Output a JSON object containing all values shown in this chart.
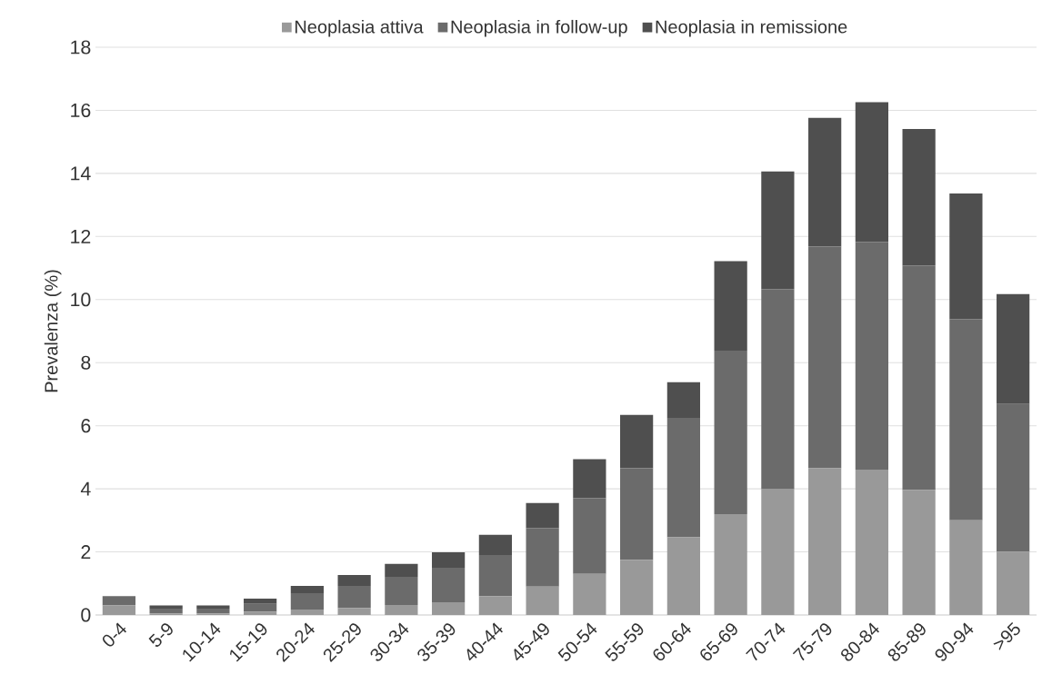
{
  "chart_data": {
    "type": "bar",
    "stacked": true,
    "ylabel": "Prevalenza (%)",
    "categories": [
      "0-4",
      "5-9",
      "10-14",
      "15-19",
      "20-24",
      "25-29",
      "30-34",
      "35-39",
      "40-44",
      "45-49",
      "50-54",
      "55-59",
      "60-64",
      "65-69",
      "70-74",
      "75-79",
      "80-84",
      "85-89",
      "90-94",
      ">95"
    ],
    "series": [
      {
        "name": "Neoplasia attiva",
        "color": "#999999",
        "values": [
          0.3,
          0.05,
          0.05,
          0.1,
          0.17,
          0.22,
          0.32,
          0.4,
          0.6,
          0.9,
          1.3,
          1.75,
          2.46,
          3.2,
          4.0,
          4.65,
          4.61,
          3.96,
          3.0,
          2.01
        ]
      },
      {
        "name": "Neoplasia in follow-up",
        "color": "#6b6b6b",
        "values": [
          0.3,
          0.15,
          0.15,
          0.25,
          0.52,
          0.7,
          0.89,
          1.1,
          1.3,
          1.86,
          2.4,
          2.9,
          3.79,
          5.18,
          6.33,
          7.03,
          7.22,
          7.12,
          6.38,
          4.68
        ]
      },
      {
        "name": "Neoplasia in remissione",
        "color": "#4f4f4f",
        "values": [
          0.0,
          0.1,
          0.1,
          0.17,
          0.23,
          0.35,
          0.41,
          0.49,
          0.64,
          0.79,
          1.24,
          1.69,
          1.13,
          2.84,
          3.73,
          4.08,
          4.43,
          4.33,
          3.98,
          3.48
        ]
      }
    ],
    "ylim": [
      0,
      18
    ],
    "yticks": [
      0,
      2,
      4,
      6,
      8,
      10,
      12,
      14,
      16,
      18
    ],
    "grid": "y",
    "legend": "top"
  }
}
